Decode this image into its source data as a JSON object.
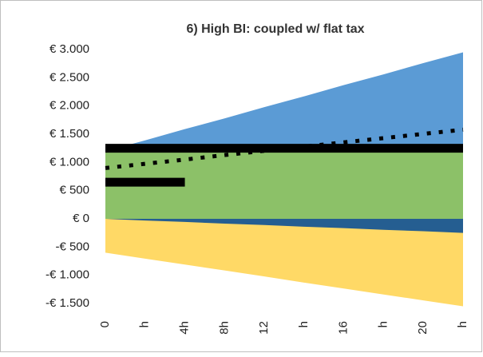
{
  "chart_data": {
    "type": "area",
    "title": "6) High BI: coupled w/ flat tax",
    "categories": [
      "0",
      "h",
      "4h",
      "8h",
      "12",
      "h",
      "16",
      "h",
      "20",
      "h"
    ],
    "ylim": [
      -1500,
      3000
    ],
    "yticks": [
      {
        "value": 3000,
        "label": "€ 3.000"
      },
      {
        "value": 2500,
        "label": "€ 2.500"
      },
      {
        "value": 2000,
        "label": "€ 2.000"
      },
      {
        "value": 1500,
        "label": "€ 1.500"
      },
      {
        "value": 1000,
        "label": "€ 1.000"
      },
      {
        "value": 500,
        "label": "€ 500"
      },
      {
        "value": 0,
        "label": "€ 0"
      },
      {
        "value": -500,
        "label": "-€ 500"
      },
      {
        "value": -1000,
        "label": "-€ 1.000"
      },
      {
        "value": -1500,
        "label": "-€ 1.500"
      }
    ],
    "series": [
      {
        "type": "area",
        "color": "#5b9bd5",
        "values": [
          1200,
          1390,
          1590,
          1780,
          1980,
          2170,
          2370,
          2560,
          2760,
          2950
        ]
      },
      {
        "type": "area",
        "color": "#ffd966",
        "values": [
          -600,
          -705,
          -810,
          -915,
          -1020,
          -1130,
          -1235,
          -1340,
          -1445,
          -1550
        ]
      },
      {
        "type": "area",
        "color": "#8cc168",
        "values": [
          1250,
          1250,
          1250,
          1250,
          1250,
          1250,
          1250,
          1250,
          1250,
          1250
        ]
      },
      {
        "type": "area",
        "color": "#255e91",
        "values": [
          0,
          -30,
          -55,
          -85,
          -110,
          -140,
          -165,
          -195,
          -220,
          -250
        ]
      },
      {
        "type": "line",
        "color": "#000000",
        "dash": true,
        "values": [
          900,
          975,
          1050,
          1130,
          1205,
          1280,
          1355,
          1430,
          1505,
          1580
        ]
      },
      {
        "type": "line",
        "color": "#000000",
        "values": [
          1250,
          1250,
          1250,
          1250,
          1250,
          1250,
          1250,
          1250,
          1250,
          1250
        ]
      },
      {
        "type": "line",
        "color": "#000000",
        "values": [
          650,
          650,
          650,
          null,
          null,
          null,
          null,
          null,
          null,
          null
        ]
      }
    ]
  }
}
